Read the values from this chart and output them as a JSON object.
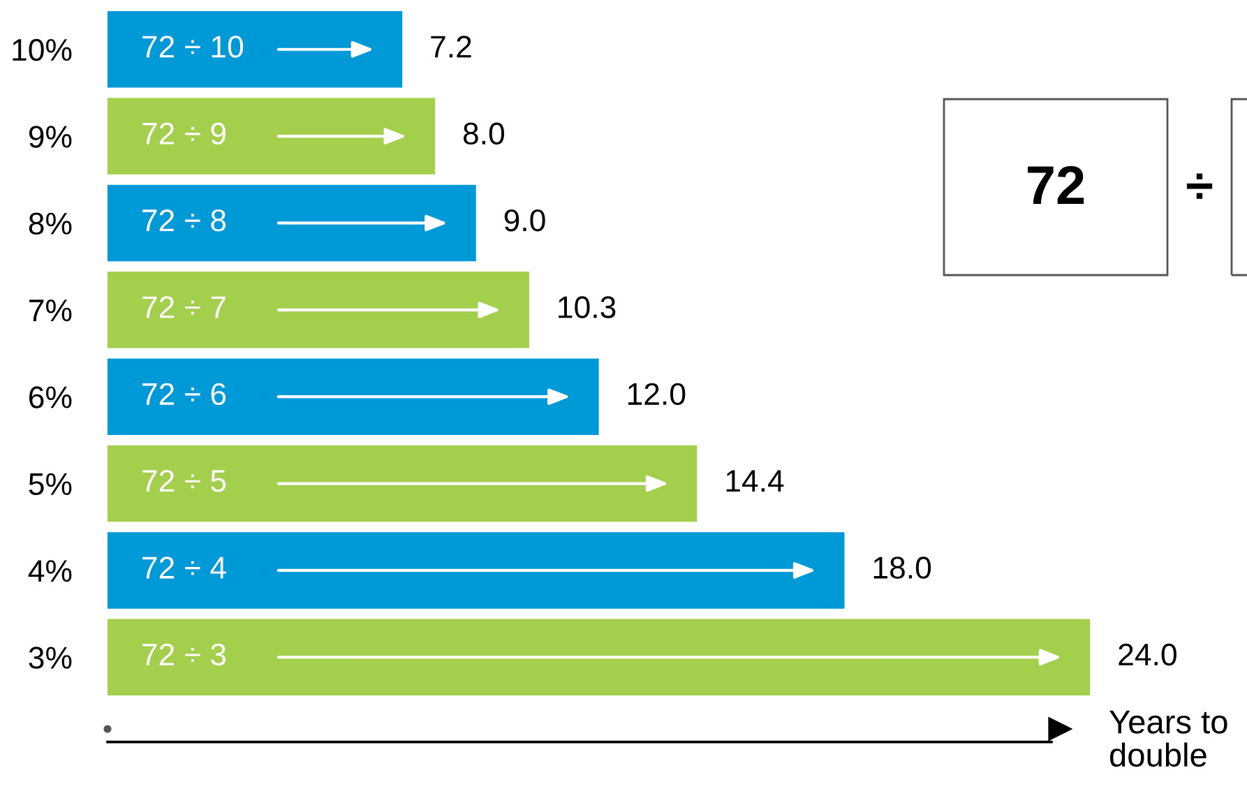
{
  "chart_data": {
    "type": "bar",
    "orientation": "horizontal",
    "xlabel": "Years to\ndouble",
    "categories": [
      "10%",
      "9%",
      "8%",
      "7%",
      "6%",
      "5%",
      "4%",
      "3%"
    ],
    "values": [
      7.2,
      8.0,
      9.0,
      10.3,
      12.0,
      14.4,
      18.0,
      24.0
    ],
    "value_labels": [
      "7.2",
      "8.0",
      "9.0",
      "10.3",
      "12.0",
      "14.4",
      "18.0",
      "24.0"
    ],
    "colors": [
      "#0099d8",
      "#a4cf4c",
      "#0099d8",
      "#a4cf4c",
      "#0099d8",
      "#a4cf4c",
      "#0099d8",
      "#a4cf4c"
    ],
    "annotations": [
      {
        "text": "72 ÷ 10",
        "y": "10%"
      },
      {
        "text": "72 ÷ 9",
        "y": "9%"
      },
      {
        "text": "72 ÷ 8",
        "y": "8%"
      },
      {
        "text": "72 ÷ 7",
        "y": "7%"
      },
      {
        "text": "72 ÷ 6",
        "y": "6%"
      },
      {
        "text": "72 ÷ 5",
        "y": "5%"
      },
      {
        "text": "72 ÷ 4",
        "y": "4%"
      },
      {
        "text": "72 ÷ 3",
        "y": "3%"
      },
      "72",
      "÷"
    ],
    "tick_labels": "y"
  }
}
